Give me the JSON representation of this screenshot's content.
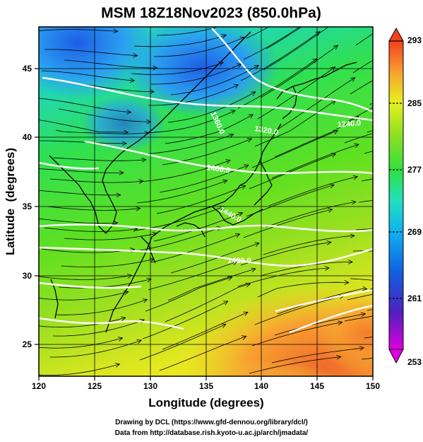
{
  "title": "MSM 18Z18Nov2023 (850.0hPa)",
  "xlabel": "Longitude (degrees)",
  "ylabel": "Latitude  (degrees)",
  "xticks": [
    "120",
    "125",
    "130",
    "135",
    "140",
    "145",
    "150"
  ],
  "yticks": [
    "25",
    "30",
    "35",
    "40",
    "45"
  ],
  "xlim": [
    120,
    150
  ],
  "ylim": [
    22.4,
    47.6
  ],
  "colorbar": {
    "ticks": [
      "293",
      "285",
      "277",
      "269",
      "261",
      "253"
    ],
    "range": [
      253,
      293
    ],
    "colors": [
      "#e000e0",
      "#3030c0",
      "#1478e8",
      "#20d8e0",
      "#20e080",
      "#50e020",
      "#b4e628",
      "#f0f020",
      "#f8a030",
      "#f04020"
    ]
  },
  "contours": {
    "labels": [
      "1480.0",
      "1440.0",
      "1400.0",
      "1360.0",
      "1320.0",
      "1240.0"
    ]
  },
  "credits": {
    "line1": "Drawing by DCL (https://www.gfd-dennou.org/library/dcl/)",
    "line2": "Data from http://database.rish.kyoto-u.ac.jp/arch/jmadata/"
  }
}
